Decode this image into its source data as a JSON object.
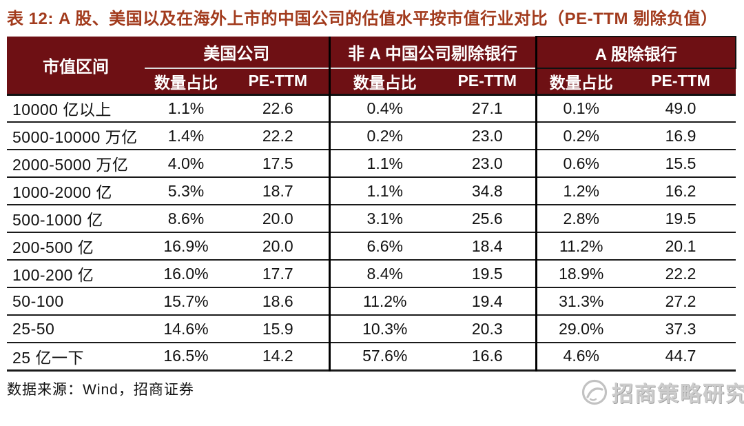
{
  "title": {
    "text": "表 12: A 股、美国以及在海外上市的中国公司的估值水平按市值行业对比（PE-TTM 剔除负值）"
  },
  "table": {
    "corner_header": "市值区间",
    "groups": [
      {
        "label": "美国公司",
        "sub": [
          "数量占比",
          "PE-TTM"
        ]
      },
      {
        "label": "非 A 中国公司剔除银行",
        "sub": [
          "数量占比",
          "PE-TTM"
        ]
      },
      {
        "label": "A 股除银行",
        "sub": [
          "数量占比",
          "PE-TTM"
        ]
      }
    ],
    "rows": [
      [
        "10000 亿以上",
        "1.1%",
        "22.6",
        "0.4%",
        "27.1",
        "0.1%",
        "49.0"
      ],
      [
        "5000-10000 万亿",
        "1.4%",
        "22.2",
        "0.2%",
        "23.0",
        "0.2%",
        "16.9"
      ],
      [
        "2000-5000 万亿",
        "4.0%",
        "17.5",
        "1.1%",
        "23.0",
        "0.6%",
        "15.5"
      ],
      [
        "1000-2000 亿",
        "5.3%",
        "18.7",
        "1.1%",
        "34.8",
        "1.2%",
        "16.2"
      ],
      [
        "500-1000 亿",
        "8.6%",
        "20.0",
        "3.1%",
        "25.6",
        "2.8%",
        "19.5"
      ],
      [
        "200-500 亿",
        "16.9%",
        "20.0",
        "6.6%",
        "18.4",
        "11.2%",
        "20.1"
      ],
      [
        "100-200 亿",
        "16.0%",
        "17.7",
        "8.4%",
        "19.5",
        "18.9%",
        "22.2"
      ],
      [
        "50-100",
        "15.7%",
        "18.6",
        "11.2%",
        "19.4",
        "31.3%",
        "27.2"
      ],
      [
        "25-50",
        "14.6%",
        "15.9",
        "10.3%",
        "20.3",
        "29.0%",
        "37.3"
      ],
      [
        "25 亿一下",
        "16.5%",
        "14.2",
        "57.6%",
        "16.6",
        "4.6%",
        "44.7"
      ]
    ]
  },
  "footer": {
    "source": "数据来源：Wind，招商证券"
  },
  "watermark": {
    "text": "招商策略研究",
    "logo": "cms-logo"
  },
  "colors": {
    "header_bg": "#6e1014",
    "title_red": "#a23b1d",
    "divider": "#000000",
    "watermark_gray": "#c2c2c2"
  }
}
